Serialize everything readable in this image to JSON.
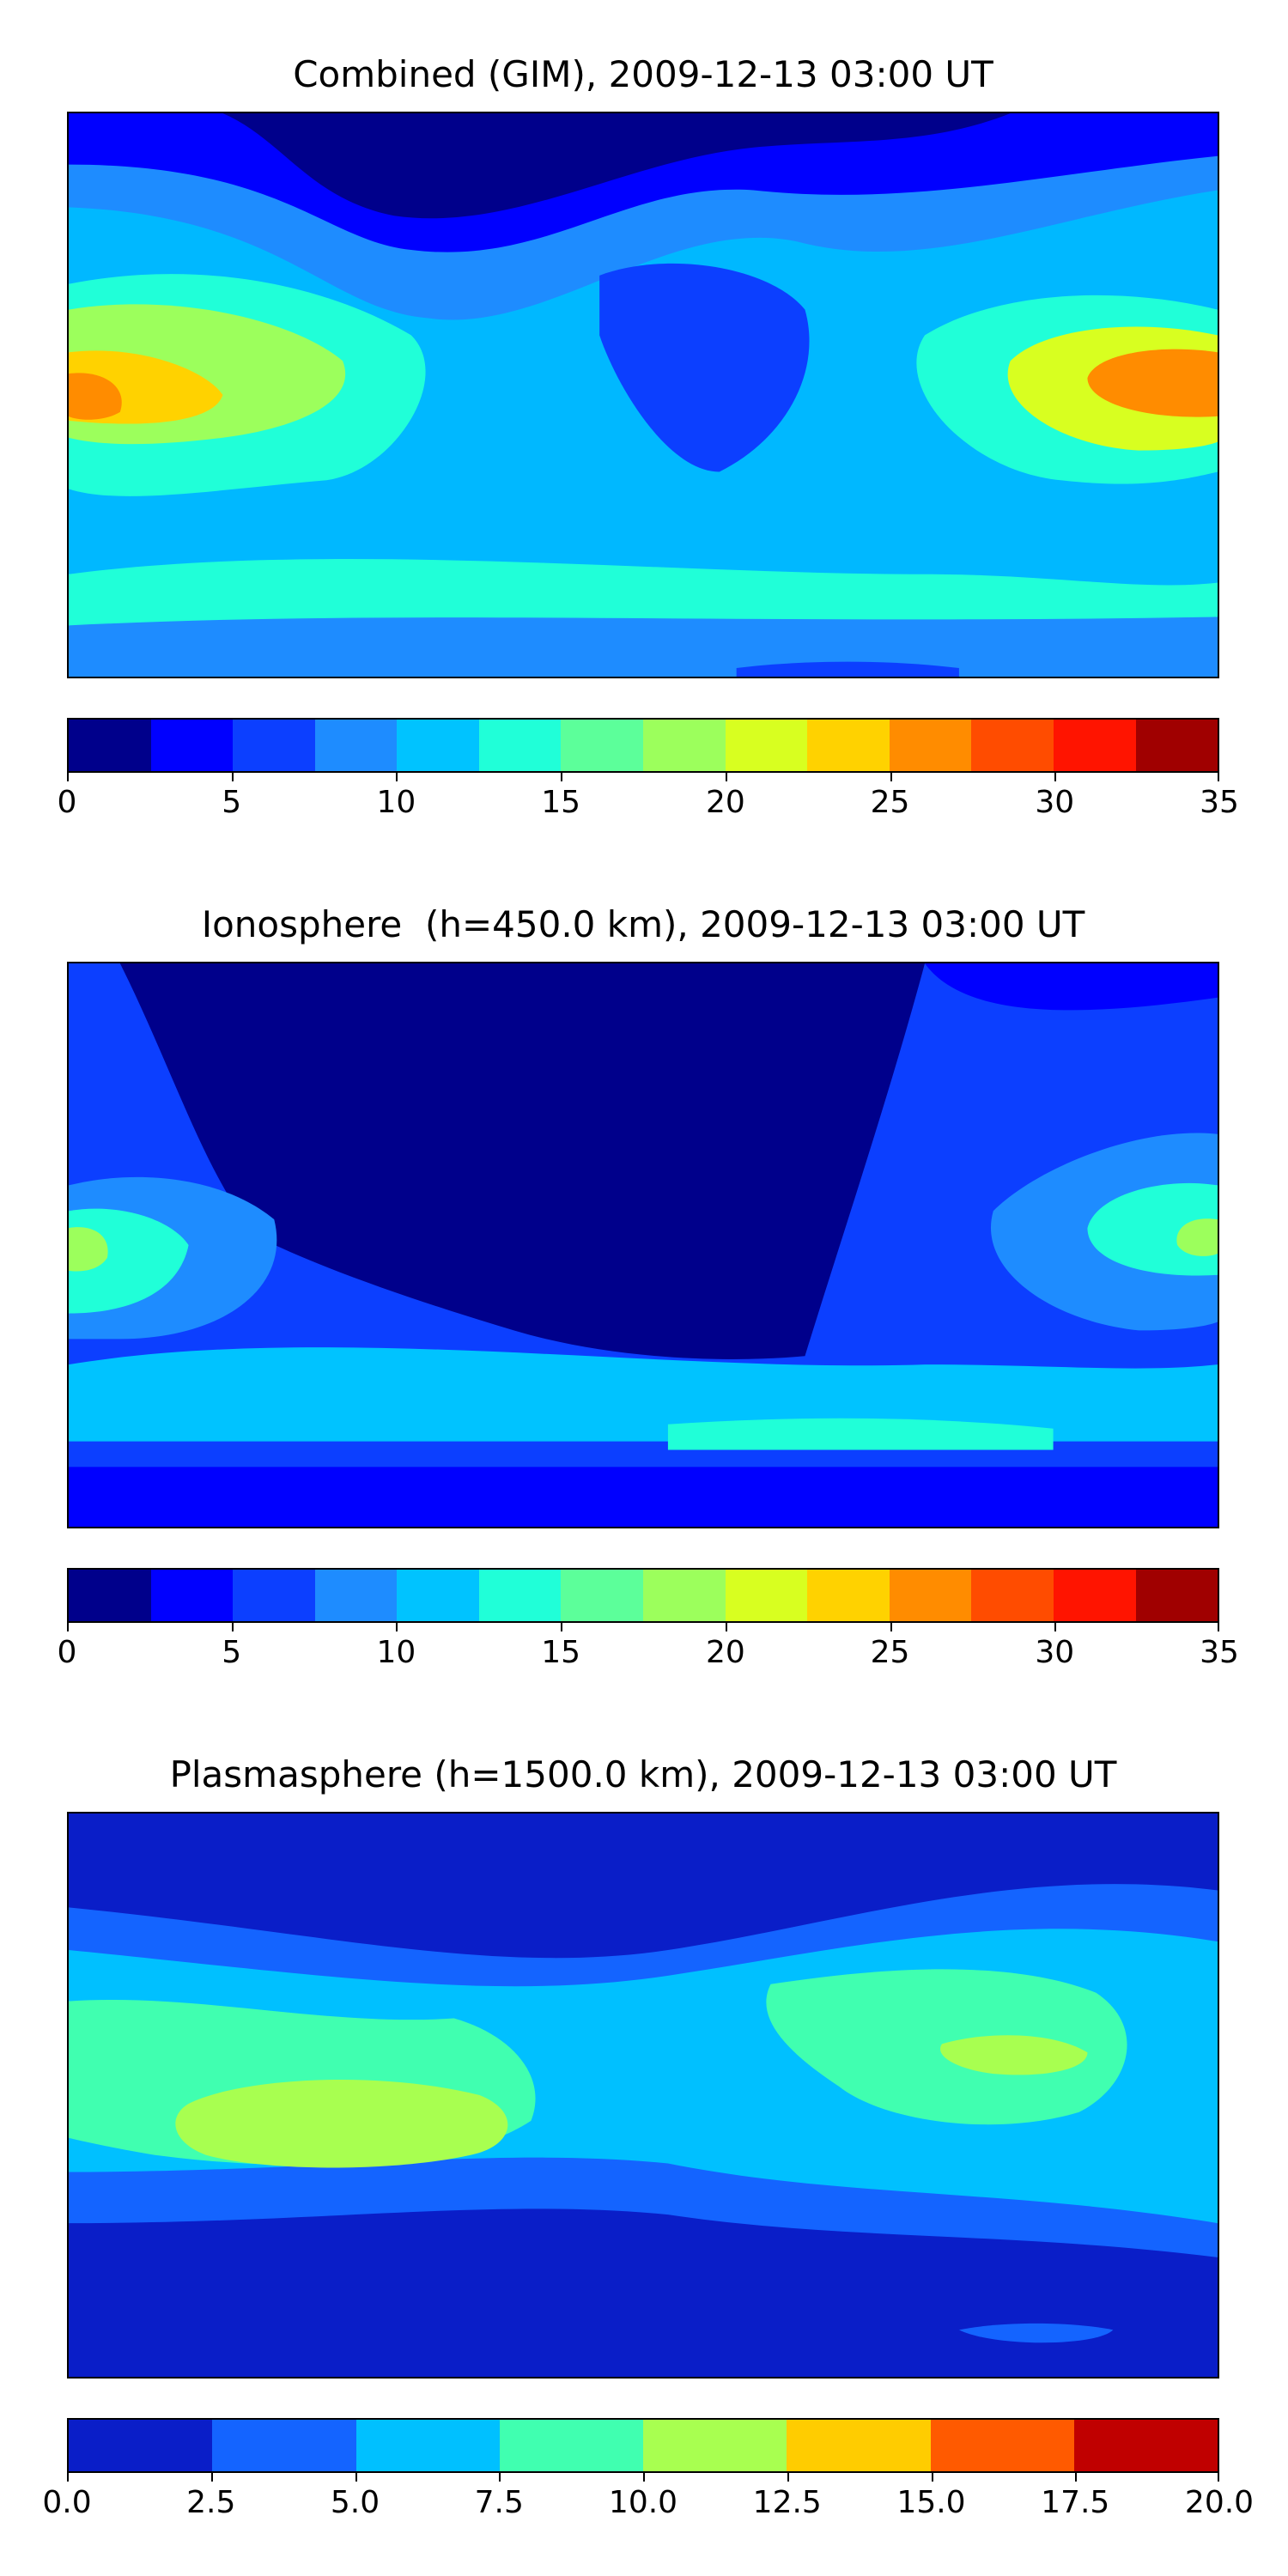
{
  "panels": [
    {
      "title": "Combined (GIM), 2009-12-13 03:00 UT",
      "colorbar": {
        "ticks": [
          "0",
          "5",
          "10",
          "15",
          "20",
          "25",
          "30",
          "35"
        ],
        "colors": [
          "#00008b",
          "#0000ff",
          "#0c3fff",
          "#1e8cff",
          "#00c3ff",
          "#20ffd8",
          "#5cff9a",
          "#9cff5c",
          "#d8ff20",
          "#ffd200",
          "#ff8c00",
          "#ff4c00",
          "#ff1400",
          "#a00000"
        ]
      }
    },
    {
      "title": "Ionosphere  (h=450.0 km), 2009-12-13 03:00 UT",
      "colorbar": {
        "ticks": [
          "0",
          "5",
          "10",
          "15",
          "20",
          "25",
          "30",
          "35"
        ],
        "colors": [
          "#00008b",
          "#0000ff",
          "#0c3fff",
          "#1e8cff",
          "#00c3ff",
          "#20ffd8",
          "#5cff9a",
          "#9cff5c",
          "#d8ff20",
          "#ffd200",
          "#ff8c00",
          "#ff4c00",
          "#ff1400",
          "#a00000"
        ]
      }
    },
    {
      "title": "Plasmasphere (h=1500.0 km), 2009-12-13 03:00 UT",
      "colorbar": {
        "ticks": [
          "0.0",
          "2.5",
          "5.0",
          "7.5",
          "10.0",
          "12.5",
          "15.0",
          "17.5",
          "20.0"
        ],
        "colors": [
          "#0a1ec8",
          "#1464ff",
          "#00c0ff",
          "#40ffb0",
          "#a8ff50",
          "#ffcc00",
          "#ff5a00",
          "#c00000"
        ]
      }
    }
  ],
  "chart_data": [
    {
      "type": "heatmap",
      "title": "Combined (GIM), 2009-12-13 03:00 UT",
      "colorbar_range": [
        0,
        35
      ],
      "colorbar_step": 2.5
    },
    {
      "type": "heatmap",
      "title": "Ionosphere  (h=450.0 km), 2009-12-13 03:00 UT",
      "colorbar_range": [
        0,
        35
      ],
      "colorbar_step": 2.5
    },
    {
      "type": "heatmap",
      "title": "Plasmasphere (h=1500.0 km), 2009-12-13 03:00 UT",
      "colorbar_range": [
        0,
        20
      ],
      "colorbar_step": 2.5
    }
  ]
}
